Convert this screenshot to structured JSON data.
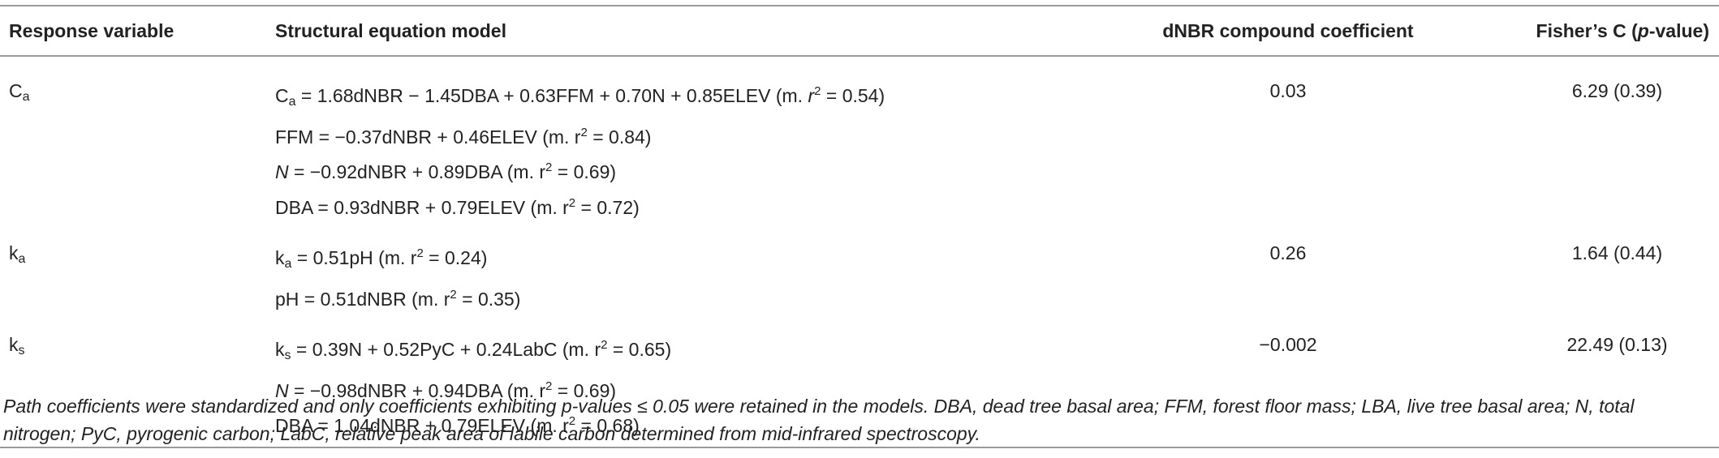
{
  "table": {
    "header": [
      [
        "Response variable"
      ],
      [
        "Structural equation model"
      ],
      [
        "dNBR compound coefficient"
      ],
      [
        "Fisher’s C (",
        {
          "text": "p",
          "style": "italic"
        },
        "-value)"
      ]
    ],
    "rows": [
      {
        "response": [
          "C",
          {
            "text": "a",
            "style": "sub"
          }
        ],
        "equations": [
          [
            "C",
            {
              "text": "a",
              "style": "sub"
            },
            " = 1.68dNBR − 1.45DBA + 0.63FFM + 0.70N + 0.85ELEV (m. ",
            {
              "text": "r",
              "style": "italic"
            },
            {
              "text": "2",
              "style": "sup"
            },
            " = 0.54)"
          ],
          [
            "FFM = −0.37dNBR + 0.46ELEV (m. r",
            {
              "text": "2",
              "style": "sup"
            },
            " = 0.84)"
          ],
          [
            {
              "text": "N",
              "style": "italic"
            },
            " = −0.92dNBR + 0.89DBA (m. r",
            {
              "text": "2",
              "style": "sup"
            },
            " = 0.69)"
          ],
          [
            "DBA = 0.93dNBR + 0.79ELEV (m. r",
            {
              "text": "2",
              "style": "sup"
            },
            " = 0.72)"
          ]
        ],
        "coefficient": "0.03",
        "fisher": "6.29 (0.39)"
      },
      {
        "response": [
          "k",
          {
            "text": "a",
            "style": "sub"
          }
        ],
        "equations": [
          [
            "k",
            {
              "text": "a",
              "style": "sub"
            },
            " = 0.51pH (m. r",
            {
              "text": "2",
              "style": "sup"
            },
            " = 0.24)"
          ],
          [
            "pH = 0.51dNBR (m. r",
            {
              "text": "2",
              "style": "sup"
            },
            " = 0.35)"
          ]
        ],
        "coefficient": "0.26",
        "fisher": "1.64 (0.44)"
      },
      {
        "response": [
          "k",
          {
            "text": "s",
            "style": "sub"
          }
        ],
        "equations": [
          [
            "k",
            {
              "text": "s",
              "style": "sub"
            },
            " = 0.39N + 0.52PyC + 0.24LabC (m. r",
            {
              "text": "2",
              "style": "sup"
            },
            " = 0.65)"
          ],
          [
            {
              "text": "N",
              "style": "italic"
            },
            " = −0.98dNBR + 0.94DBA (m. r",
            {
              "text": "2",
              "style": "sup"
            },
            " = 0.69)"
          ],
          [
            "DBA = 1.04dNBR + 0.79ELEV (m. r",
            {
              "text": "2",
              "style": "sup"
            },
            " = 0.68)"
          ]
        ],
        "coefficient": "−0.002",
        "fisher": "22.49 (0.13)"
      }
    ],
    "footnote": "Path coefficients were standardized and only coefficients exhibiting p-values ≤ 0.05 were retained in the models. DBA, dead tree basal area; FFM, forest floor mass; LBA, live tree basal area; N, total nitrogen; PyC, pyrogenic carbon; LabC, relative peak area of labile carbon determined from mid-infrared spectroscopy."
  }
}
